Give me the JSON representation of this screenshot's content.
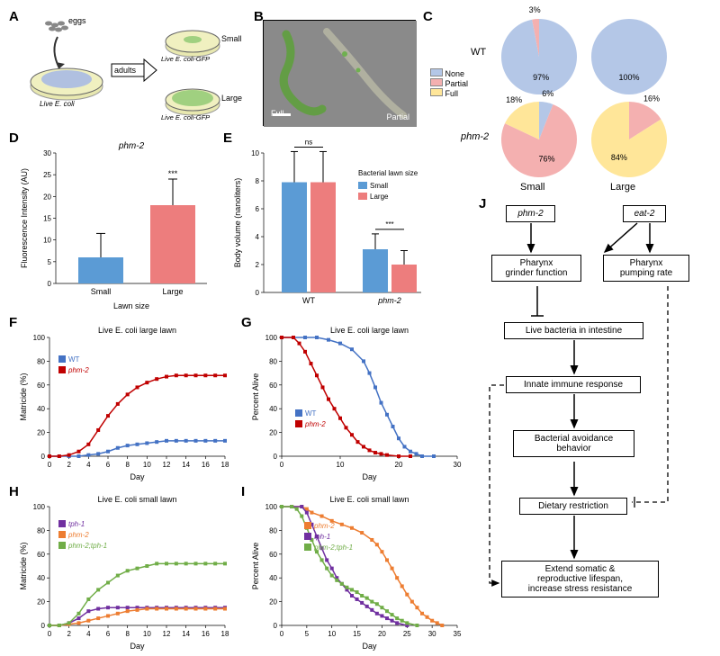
{
  "colors": {
    "blue": "#5b9bd5",
    "coral": "#ed7d7d",
    "yellow": "#ffd966",
    "blue_line": "#4472c4",
    "red_line": "#c00000",
    "purple": "#7030a0",
    "orange": "#ed7d31",
    "green": "#70ad47"
  },
  "panelA": {
    "label": "A",
    "text_eggs": "eggs",
    "text_adults": "adults",
    "text_live": "Live E. coli",
    "text_gfp": "Live E. coli-GFP",
    "text_small": "Small",
    "text_large": "Large"
  },
  "panelB": {
    "label": "B",
    "text_full": "Full",
    "text_partial": "Partial"
  },
  "panelC": {
    "label": "C",
    "legend": [
      "None",
      "Partial",
      "Full"
    ],
    "legend_colors": [
      "#b4c7e7",
      "#f4b0b0",
      "#ffe699"
    ],
    "wt_label": "WT",
    "phm_label": "phm-2",
    "small_label": "Small",
    "large_label": "Large",
    "pies": {
      "wt_small": [
        {
          "v": 97,
          "c": "#b4c7e7",
          "l": "97%"
        },
        {
          "v": 3,
          "c": "#f4b0b0",
          "l": "3%"
        }
      ],
      "wt_large": [
        {
          "v": 100,
          "c": "#b4c7e7",
          "l": "100%"
        }
      ],
      "phm_small": [
        {
          "v": 6,
          "c": "#b4c7e7",
          "l": "6%"
        },
        {
          "v": 76,
          "c": "#f4b0b0",
          "l": "76%"
        },
        {
          "v": 18,
          "c": "#ffe699",
          "l": "18%"
        }
      ],
      "phm_large": [
        {
          "v": 16,
          "c": "#f4b0b0",
          "l": "16%"
        },
        {
          "v": 84,
          "c": "#ffe699",
          "l": "84%"
        }
      ]
    }
  },
  "panelD": {
    "label": "D",
    "title": "phm-2",
    "ylabel": "Fluorescence Intensity (AU)",
    "xlabel": "Lawn size",
    "ylim": [
      0,
      30
    ],
    "ytick": 5,
    "bars": [
      {
        "x": "Small",
        "v": 6,
        "err": 5.5,
        "c": "#5b9bd5"
      },
      {
        "x": "Large",
        "v": 18,
        "err": 6,
        "c": "#ed7d7d"
      }
    ],
    "sig": "***"
  },
  "panelE": {
    "label": "E",
    "ylabel": "Body volume (nanoliters)",
    "ylim": [
      0,
      10
    ],
    "ytick": 2,
    "legend_title": "Bacterial lawn size",
    "legend": [
      {
        "l": "Small",
        "c": "#5b9bd5"
      },
      {
        "l": "Large",
        "c": "#ed7d7d"
      }
    ],
    "groups": [
      {
        "x": "WT",
        "bars": [
          {
            "v": 7.9,
            "err": 2.2,
            "c": "#5b9bd5"
          },
          {
            "v": 7.9,
            "err": 2.2,
            "c": "#ed7d7d"
          }
        ],
        "sig": "ns"
      },
      {
        "x": "phm-2",
        "bars": [
          {
            "v": 3.1,
            "err": 1.1,
            "c": "#5b9bd5"
          },
          {
            "v": 2.0,
            "err": 1.0,
            "c": "#ed7d7d"
          }
        ],
        "sig": "***"
      }
    ]
  },
  "panelF": {
    "label": "F",
    "title": "Live E. coli large lawn",
    "ylabel": "Matricide (%)",
    "xlabel": "Day",
    "ylim": [
      0,
      100
    ],
    "ytick": 20,
    "xlim": [
      0,
      18
    ],
    "xtick": 2,
    "series": [
      {
        "name": "WT",
        "c": "#4472c4",
        "pts": [
          [
            0,
            0
          ],
          [
            1,
            0
          ],
          [
            2,
            0
          ],
          [
            3,
            0
          ],
          [
            4,
            1
          ],
          [
            5,
            2
          ],
          [
            6,
            4
          ],
          [
            7,
            7
          ],
          [
            8,
            9
          ],
          [
            9,
            10
          ],
          [
            10,
            11
          ],
          [
            11,
            12
          ],
          [
            12,
            13
          ],
          [
            13,
            13
          ],
          [
            14,
            13
          ],
          [
            15,
            13
          ],
          [
            16,
            13
          ],
          [
            17,
            13
          ],
          [
            18,
            13
          ]
        ]
      },
      {
        "name": "phm-2",
        "c": "#c00000",
        "pts": [
          [
            0,
            0
          ],
          [
            1,
            0
          ],
          [
            2,
            1
          ],
          [
            3,
            4
          ],
          [
            4,
            10
          ],
          [
            5,
            22
          ],
          [
            6,
            34
          ],
          [
            7,
            44
          ],
          [
            8,
            52
          ],
          [
            9,
            58
          ],
          [
            10,
            62
          ],
          [
            11,
            65
          ],
          [
            12,
            67
          ],
          [
            13,
            68
          ],
          [
            14,
            68
          ],
          [
            15,
            68
          ],
          [
            16,
            68
          ],
          [
            17,
            68
          ],
          [
            18,
            68
          ]
        ]
      }
    ]
  },
  "panelG": {
    "label": "G",
    "title": "Live E. coli large lawn",
    "ylabel": "Percent Alive",
    "xlabel": "Day",
    "ylim": [
      0,
      100
    ],
    "ytick": 20,
    "xlim": [
      0,
      30
    ],
    "xtick": 10,
    "series": [
      {
        "name": "WT",
        "c": "#4472c4",
        "pts": [
          [
            0,
            100
          ],
          [
            2,
            100
          ],
          [
            4,
            100
          ],
          [
            6,
            100
          ],
          [
            8,
            98
          ],
          [
            10,
            95
          ],
          [
            12,
            90
          ],
          [
            14,
            80
          ],
          [
            15,
            70
          ],
          [
            16,
            58
          ],
          [
            17,
            45
          ],
          [
            18,
            35
          ],
          [
            19,
            25
          ],
          [
            20,
            15
          ],
          [
            21,
            8
          ],
          [
            22,
            4
          ],
          [
            23,
            2
          ],
          [
            24,
            0
          ],
          [
            26,
            0
          ]
        ]
      },
      {
        "name": "phm-2",
        "c": "#c00000",
        "pts": [
          [
            0,
            100
          ],
          [
            2,
            100
          ],
          [
            3,
            95
          ],
          [
            4,
            88
          ],
          [
            5,
            78
          ],
          [
            6,
            68
          ],
          [
            7,
            58
          ],
          [
            8,
            48
          ],
          [
            9,
            40
          ],
          [
            10,
            32
          ],
          [
            11,
            24
          ],
          [
            12,
            18
          ],
          [
            13,
            12
          ],
          [
            14,
            8
          ],
          [
            15,
            5
          ],
          [
            16,
            3
          ],
          [
            17,
            2
          ],
          [
            18,
            1
          ],
          [
            20,
            0
          ],
          [
            22,
            0
          ]
        ]
      }
    ]
  },
  "panelH": {
    "label": "H",
    "title": "Live E. coli small lawn",
    "ylabel": "Matricide (%)",
    "xlabel": "Day",
    "ylim": [
      0,
      100
    ],
    "ytick": 20,
    "xlim": [
      0,
      18
    ],
    "xtick": 2,
    "series": [
      {
        "name": "tph-1",
        "c": "#7030a0",
        "pts": [
          [
            0,
            0
          ],
          [
            1,
            0
          ],
          [
            2,
            2
          ],
          [
            3,
            6
          ],
          [
            4,
            12
          ],
          [
            5,
            14
          ],
          [
            6,
            15
          ],
          [
            7,
            15
          ],
          [
            8,
            15
          ],
          [
            9,
            15
          ],
          [
            10,
            15
          ],
          [
            11,
            15
          ],
          [
            12,
            15
          ],
          [
            13,
            15
          ],
          [
            14,
            15
          ],
          [
            15,
            15
          ],
          [
            16,
            15
          ],
          [
            17,
            15
          ],
          [
            18,
            15
          ]
        ]
      },
      {
        "name": "phm-2",
        "c": "#ed7d31",
        "pts": [
          [
            0,
            0
          ],
          [
            1,
            0
          ],
          [
            2,
            1
          ],
          [
            3,
            2
          ],
          [
            4,
            4
          ],
          [
            5,
            6
          ],
          [
            6,
            8
          ],
          [
            7,
            10
          ],
          [
            8,
            12
          ],
          [
            9,
            13
          ],
          [
            10,
            14
          ],
          [
            11,
            14
          ],
          [
            12,
            14
          ],
          [
            13,
            14
          ],
          [
            14,
            14
          ],
          [
            15,
            14
          ],
          [
            16,
            14
          ],
          [
            17,
            14
          ],
          [
            18,
            14
          ]
        ]
      },
      {
        "name": "phm-2;tph-1",
        "c": "#70ad47",
        "pts": [
          [
            0,
            0
          ],
          [
            1,
            0
          ],
          [
            2,
            2
          ],
          [
            3,
            10
          ],
          [
            4,
            22
          ],
          [
            5,
            30
          ],
          [
            6,
            36
          ],
          [
            7,
            42
          ],
          [
            8,
            46
          ],
          [
            9,
            48
          ],
          [
            10,
            50
          ],
          [
            11,
            52
          ],
          [
            12,
            52
          ],
          [
            13,
            52
          ],
          [
            14,
            52
          ],
          [
            15,
            52
          ],
          [
            16,
            52
          ],
          [
            17,
            52
          ],
          [
            18,
            52
          ]
        ]
      }
    ]
  },
  "panelI": {
    "label": "I",
    "title": "Live E. coli small lawn",
    "ylabel": "Percent Alive",
    "xlabel": "Day",
    "ylim": [
      0,
      100
    ],
    "ytick": 20,
    "xlim": [
      0,
      35
    ],
    "xtick": 5,
    "series": [
      {
        "name": "phm-2",
        "c": "#ed7d31",
        "pts": [
          [
            0,
            100
          ],
          [
            2,
            100
          ],
          [
            4,
            100
          ],
          [
            5,
            98
          ],
          [
            6,
            95
          ],
          [
            8,
            92
          ],
          [
            10,
            88
          ],
          [
            12,
            85
          ],
          [
            14,
            82
          ],
          [
            16,
            78
          ],
          [
            18,
            72
          ],
          [
            19,
            68
          ],
          [
            20,
            62
          ],
          [
            21,
            55
          ],
          [
            22,
            48
          ],
          [
            23,
            40
          ],
          [
            24,
            33
          ],
          [
            25,
            26
          ],
          [
            26,
            20
          ],
          [
            27,
            15
          ],
          [
            28,
            10
          ],
          [
            29,
            7
          ],
          [
            30,
            4
          ],
          [
            31,
            2
          ],
          [
            32,
            0
          ]
        ]
      },
      {
        "name": "tph-1",
        "c": "#7030a0",
        "pts": [
          [
            0,
            100
          ],
          [
            2,
            100
          ],
          [
            4,
            100
          ],
          [
            5,
            95
          ],
          [
            6,
            85
          ],
          [
            7,
            75
          ],
          [
            8,
            65
          ],
          [
            9,
            55
          ],
          [
            10,
            48
          ],
          [
            11,
            40
          ],
          [
            12,
            35
          ],
          [
            13,
            30
          ],
          [
            14,
            25
          ],
          [
            15,
            22
          ],
          [
            16,
            19
          ],
          [
            17,
            16
          ],
          [
            18,
            13
          ],
          [
            19,
            10
          ],
          [
            20,
            8
          ],
          [
            21,
            6
          ],
          [
            22,
            4
          ],
          [
            23,
            2
          ],
          [
            25,
            0
          ]
        ]
      },
      {
        "name": "phm-2;tph-1",
        "c": "#70ad47",
        "pts": [
          [
            0,
            100
          ],
          [
            2,
            100
          ],
          [
            3,
            98
          ],
          [
            4,
            92
          ],
          [
            5,
            82
          ],
          [
            6,
            72
          ],
          [
            7,
            62
          ],
          [
            8,
            55
          ],
          [
            9,
            48
          ],
          [
            10,
            42
          ],
          [
            11,
            38
          ],
          [
            12,
            35
          ],
          [
            13,
            32
          ],
          [
            14,
            30
          ],
          [
            15,
            28
          ],
          [
            16,
            25
          ],
          [
            17,
            23
          ],
          [
            18,
            20
          ],
          [
            19,
            18
          ],
          [
            20,
            15
          ],
          [
            21,
            12
          ],
          [
            22,
            9
          ],
          [
            23,
            6
          ],
          [
            24,
            4
          ],
          [
            25,
            2
          ],
          [
            27,
            0
          ]
        ]
      }
    ]
  },
  "panelJ": {
    "label": "J",
    "boxes": {
      "phm2": "phm-2",
      "eat2": "eat-2",
      "grinder": "Pharynx\ngrinder function",
      "pump": "Pharynx\npumping rate",
      "bact": "Live bacteria in intestine",
      "immune": "Innate immune response",
      "avoid": "Bacterial avoidance\nbehavior",
      "dr": "Dietary restriction",
      "extend": "Extend somatic &\nreproductive lifespan,\nincrease stress resistance"
    }
  }
}
